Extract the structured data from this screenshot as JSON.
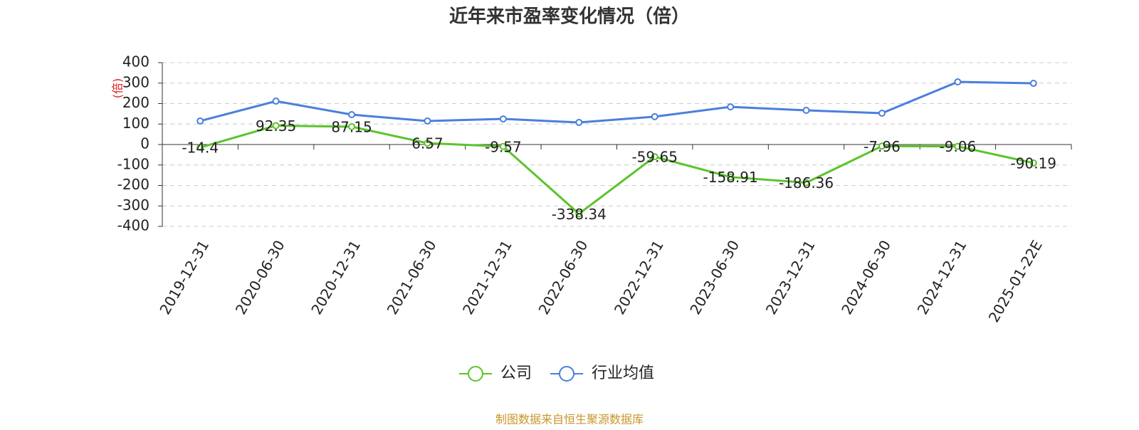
{
  "chart_data": {
    "type": "line",
    "title": "近年来市盈率变化情况（倍）",
    "y_label": "(倍)",
    "source": "制图数据来自恒生聚源数据库",
    "categories": [
      "2019-12-31",
      "2020-06-30",
      "2020-12-31",
      "2021-06-30",
      "2021-12-31",
      "2022-06-30",
      "2022-12-31",
      "2023-06-30",
      "2023-12-31",
      "2024-06-30",
      "2024-12-31",
      "2025-01-22E"
    ],
    "series": [
      {
        "name": "公司",
        "color": "#5bc42b",
        "values": [
          -14.4,
          92.35,
          87.15,
          6.57,
          -9.57,
          -338.34,
          -59.65,
          -158.91,
          -186.36,
          -7.96,
          -9.06,
          -90.19
        ],
        "data_labels": true
      },
      {
        "name": "行业均值",
        "color": "#4a7fdc",
        "values": [
          115,
          212,
          146,
          115,
          125,
          108,
          136,
          184,
          167,
          153,
          306,
          299
        ],
        "data_labels": false
      }
    ],
    "ylim": [
      -400,
      400
    ],
    "yticks": [
      -400,
      -300,
      -200,
      -100,
      0,
      100,
      200,
      300,
      400
    ],
    "grid": true,
    "legend": "bottom"
  }
}
